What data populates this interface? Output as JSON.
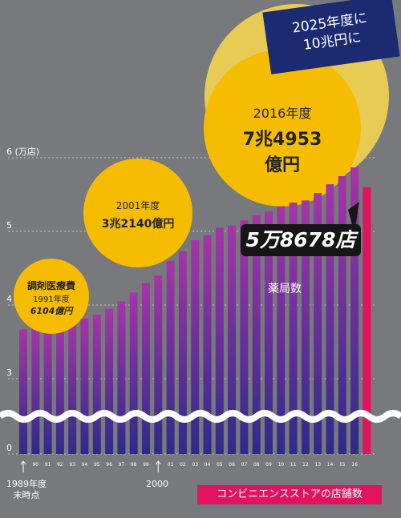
{
  "banner": {
    "line1": "2025年度に",
    "line2": "10兆円に"
  },
  "bubbles": {
    "b1991": {
      "title": "調剤医療費",
      "year": "1991年度",
      "value": "6104億円"
    },
    "b2001": {
      "year": "2001年度",
      "value": "3兆2140億円"
    },
    "b2016": {
      "year": "2016年度",
      "value": "7兆4953億円"
    }
  },
  "callout": {
    "pharmacy_count": "5万8678店"
  },
  "labels": {
    "pharmacy": "薬局数",
    "convenience": "コンビニエンスストアの店舗数",
    "first_year": "1989年度\n末時点",
    "year_2000": "2000"
  },
  "colors": {
    "background": "#77797c",
    "bar_top": "#a535a8",
    "bar_bottom": "#2c2b8a",
    "bubble_yellow": "#f6bd00",
    "bubble_pale": "#e8cb54",
    "banner": "#1c2a72",
    "convenience_bar": "#e2125e"
  },
  "chart_data": {
    "type": "bar",
    "unit": "(万店)",
    "y_ticks": [
      "0",
      "3",
      "4",
      "5",
      "6"
    ],
    "ylim": [
      0,
      6
    ],
    "y_axis_break": [
      0.5,
      2.8
    ],
    "categories": [
      "89",
      "90",
      "91",
      "92",
      "93",
      "94",
      "95",
      "96",
      "97",
      "98",
      "99",
      "00",
      "01",
      "02",
      "03",
      "04",
      "05",
      "06",
      "07",
      "08",
      "09",
      "10",
      "11",
      "12",
      "13",
      "14",
      "15",
      "16"
    ],
    "x_tick_labels": [
      "",
      "90",
      "91",
      "92",
      "93",
      "94",
      "95",
      "96",
      "97",
      "98",
      "99",
      "",
      "01",
      "02",
      "03",
      "04",
      "05",
      "06",
      "07",
      "08",
      "09",
      "10",
      "11",
      "12",
      "13",
      "14",
      "15",
      "16"
    ],
    "series": [
      {
        "name": "薬局数",
        "values": [
          3.67,
          3.69,
          3.7,
          3.73,
          3.77,
          3.82,
          3.87,
          3.95,
          4.05,
          4.17,
          4.3,
          4.4,
          4.6,
          4.73,
          4.88,
          4.95,
          5.05,
          5.08,
          5.15,
          5.22,
          5.27,
          5.34,
          5.39,
          5.42,
          5.52,
          5.64,
          5.75,
          5.8678
        ]
      }
    ],
    "convenience_stores": {
      "name": "コンビニエンスストアの店舗数",
      "value": 5.6
    }
  }
}
